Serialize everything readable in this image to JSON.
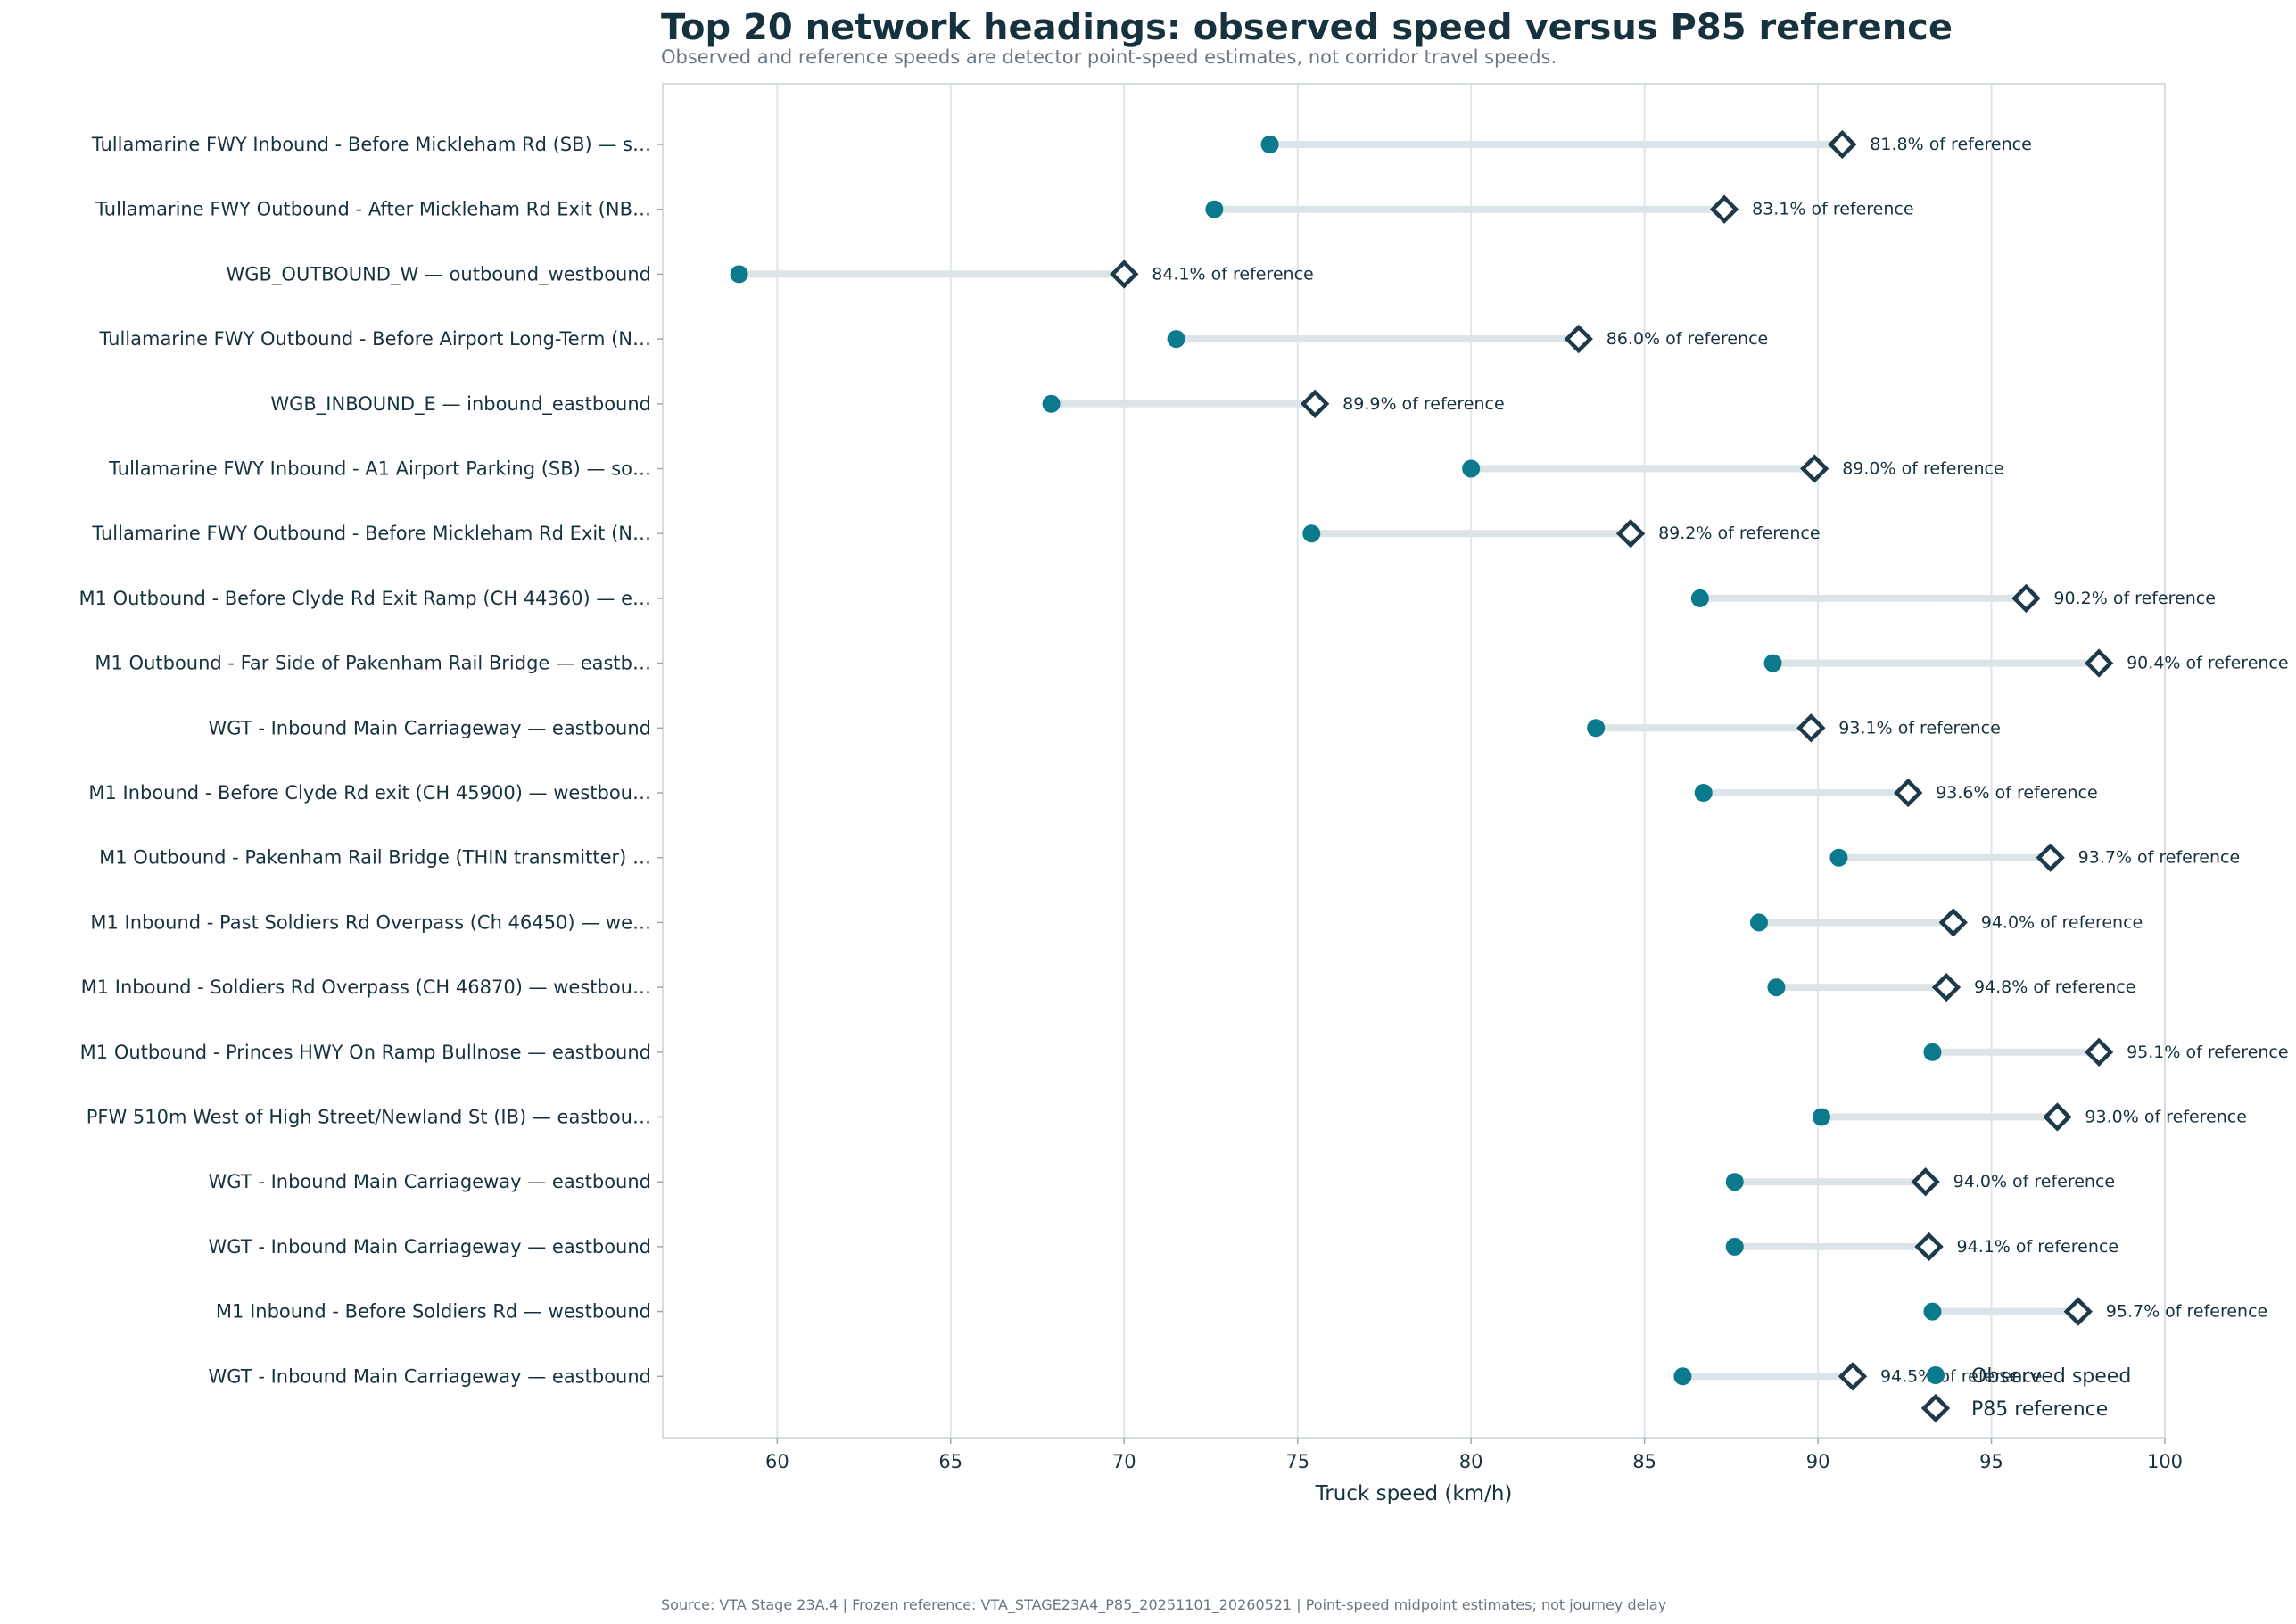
{
  "chart_data": {
    "type": "dumbbell",
    "title": "Top 20 network headings: observed speed versus P85 reference",
    "subtitle": "Observed and reference speeds are detector point-speed estimates, not corridor travel speeds.",
    "xlabel": "Truck speed (km/h)",
    "xlim": [
      56.7,
      100
    ],
    "xticks": [
      60,
      65,
      70,
      75,
      80,
      85,
      90,
      95,
      100
    ],
    "grid": "vertical",
    "legend_position": "bottom-right",
    "colors": {
      "observed": "#0b7a8c",
      "reference": "#1e3a4a",
      "connector": "#dde4e8",
      "grid": "#dfe6ea",
      "frame": "#d6dee3"
    },
    "legend": [
      {
        "key": "observed",
        "label": "Observed speed"
      },
      {
        "key": "reference",
        "label": "P85 reference"
      }
    ],
    "rows": [
      {
        "label": "Tullamarine FWY Inbound - Before Mickleham Rd (SB) — s…",
        "observed": 74.2,
        "reference": 90.7,
        "pct_label": "81.8% of reference"
      },
      {
        "label": "Tullamarine FWY Outbound - After Mickleham Rd Exit (NB…",
        "observed": 72.6,
        "reference": 87.3,
        "pct_label": "83.1% of reference"
      },
      {
        "label": "WGB_OUTBOUND_W — outbound_westbound",
        "observed": 58.9,
        "reference": 70.0,
        "pct_label": "84.1% of reference"
      },
      {
        "label": "Tullamarine FWY Outbound - Before Airport Long-Term (N…",
        "observed": 71.5,
        "reference": 83.1,
        "pct_label": "86.0% of reference"
      },
      {
        "label": "WGB_INBOUND_E — inbound_eastbound",
        "observed": 67.9,
        "reference": 75.5,
        "pct_label": "89.9% of reference"
      },
      {
        "label": "Tullamarine FWY Inbound - A1 Airport Parking (SB) — so…",
        "observed": 80.0,
        "reference": 89.9,
        "pct_label": "89.0% of reference"
      },
      {
        "label": "Tullamarine FWY Outbound - Before Mickleham Rd Exit (N…",
        "observed": 75.4,
        "reference": 84.6,
        "pct_label": "89.2% of reference"
      },
      {
        "label": "M1 Outbound - Before Clyde Rd Exit Ramp (CH 44360) — e…",
        "observed": 86.6,
        "reference": 96.0,
        "pct_label": "90.2% of reference"
      },
      {
        "label": "M1 Outbound - Far Side of Pakenham Rail Bridge — eastb…",
        "observed": 88.7,
        "reference": 98.1,
        "pct_label": "90.4% of reference"
      },
      {
        "label": "WGT - Inbound Main Carriageway — eastbound",
        "observed": 83.6,
        "reference": 89.8,
        "pct_label": "93.1% of reference"
      },
      {
        "label": "M1 Inbound - Before Clyde Rd exit (CH 45900) — westbou…",
        "observed": 86.7,
        "reference": 92.6,
        "pct_label": "93.6% of reference"
      },
      {
        "label": "M1 Outbound - Pakenham Rail Bridge (THIN transmitter) …",
        "observed": 90.6,
        "reference": 96.7,
        "pct_label": "93.7% of reference"
      },
      {
        "label": "M1 Inbound - Past Soldiers Rd Overpass (Ch 46450) — we…",
        "observed": 88.3,
        "reference": 93.9,
        "pct_label": "94.0% of reference"
      },
      {
        "label": "M1 Inbound - Soldiers Rd Overpass (CH 46870) — westbou…",
        "observed": 88.8,
        "reference": 93.7,
        "pct_label": "94.8% of reference"
      },
      {
        "label": "M1 Outbound - Princes HWY On Ramp Bullnose — eastbound",
        "observed": 93.3,
        "reference": 98.1,
        "pct_label": "95.1% of reference"
      },
      {
        "label": "PFW 510m West of High Street/Newland St (IB) — eastbou…",
        "observed": 90.1,
        "reference": 96.9,
        "pct_label": "93.0% of reference"
      },
      {
        "label": "WGT - Inbound Main Carriageway — eastbound",
        "observed": 87.6,
        "reference": 93.1,
        "pct_label": "94.0% of reference"
      },
      {
        "label": "WGT - Inbound Main Carriageway — eastbound",
        "observed": 87.6,
        "reference": 93.2,
        "pct_label": "94.1% of reference"
      },
      {
        "label": "M1 Inbound - Before Soldiers Rd — westbound",
        "observed": 93.3,
        "reference": 97.5,
        "pct_label": "95.7% of reference"
      },
      {
        "label": "WGT - Inbound Main Carriageway — eastbound",
        "observed": 86.1,
        "reference": 91.0,
        "pct_label": "94.5% of reference"
      }
    ]
  },
  "footer": {
    "source": "Source: VTA Stage 23A.4 | Frozen reference: VTA_STAGE23A4_P85_20251101_20260521 | Point-speed midpoint estimates; not journey delay"
  }
}
